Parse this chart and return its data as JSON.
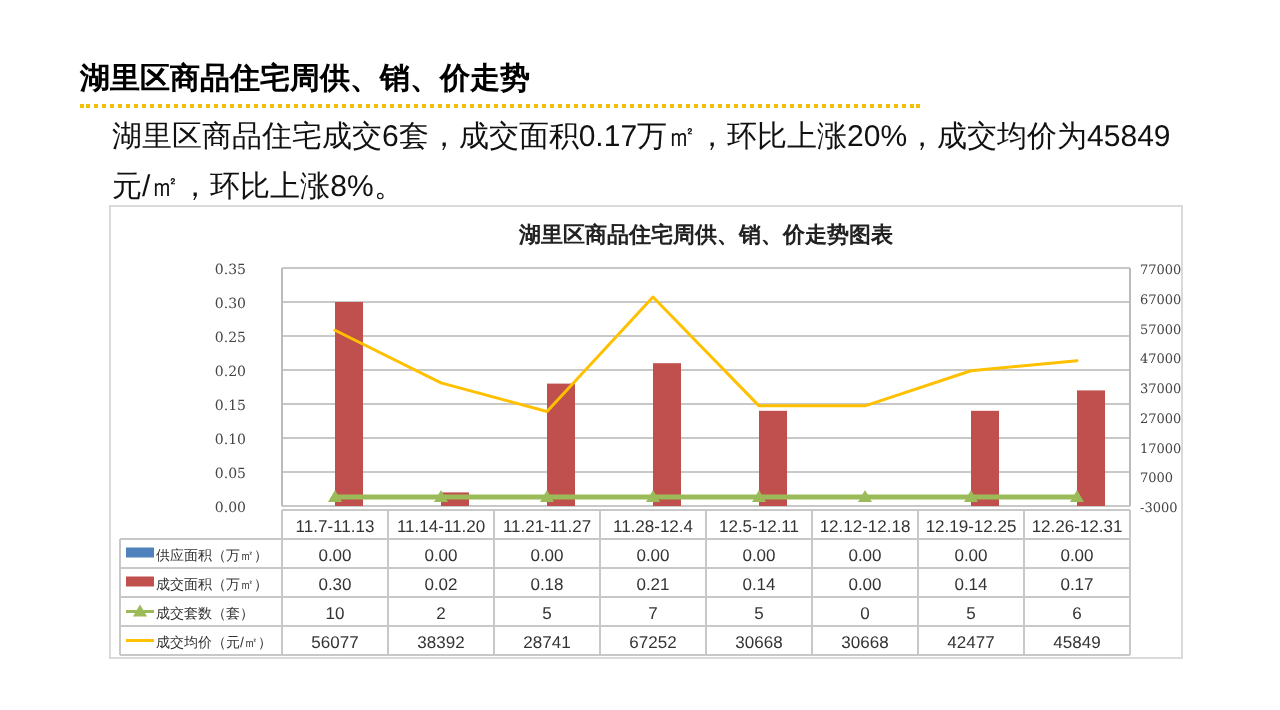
{
  "chart_data": {
    "type": "bar",
    "title": "湖里区商品住宅周供、销、价走势图表",
    "annotations": [
      "湖里区商品住宅周供、销、价走势",
      "湖里区商品住宅成交6套，成交面积0.17万㎡，环比上涨20%，成交均价为45849元/㎡，环比上涨8%。"
    ],
    "categories": [
      "11.7-11.13",
      "11.14-11.20",
      "11.21-11.27",
      "11.28-12.4",
      "12.5-12.11",
      "12.12-12.18",
      "12.19-12.25",
      "12.26-12.31"
    ],
    "series": [
      {
        "name": "供应面积（万㎡）",
        "color": "#4f81bd",
        "values": [
          0,
          0,
          0,
          0,
          0,
          0,
          0,
          0
        ],
        "value_labels": [
          "0.00",
          "0.00",
          "0.00",
          "0.00",
          "0.00",
          "0.00",
          "0.00",
          "0.00"
        ]
      },
      {
        "name": "成交面积（万㎡）",
        "color": "#c0504d",
        "values": [
          0.3,
          0.02,
          0.18,
          0.21,
          0.14,
          0,
          0.14,
          0.17
        ],
        "value_labels": [
          "0.30",
          "0.02",
          "0.18",
          "0.21",
          "0.14",
          "0.00",
          "0.14",
          "0.17"
        ]
      },
      {
        "name": "成交套数（套）",
        "type": "line",
        "axis": "y2",
        "color": "#9bbb59",
        "marker": "triangle",
        "values": [
          10,
          2,
          5,
          7,
          5,
          0,
          5,
          6
        ],
        "value_labels": [
          "10",
          "2",
          "5",
          "7",
          "5",
          "0",
          "5",
          "6"
        ]
      },
      {
        "name": "成交均价（元/㎡）",
        "type": "line",
        "axis": "y2",
        "color": "#ffc000",
        "marker": "none",
        "values": [
          56077,
          38392,
          28741,
          67252,
          30668,
          30668,
          42477,
          45849
        ],
        "value_labels": [
          "56077",
          "38392",
          "28741",
          "67252",
          "30668",
          "30668",
          "42477",
          "45849"
        ]
      }
    ],
    "ylim": [
      0,
      0.35
    ],
    "yticks": [
      {
        "value": 0,
        "label": "0.00"
      },
      {
        "value": 0.05,
        "label": "0.05"
      },
      {
        "value": 0.1,
        "label": "0.10"
      },
      {
        "value": 0.15,
        "label": "0.15"
      },
      {
        "value": 0.2,
        "label": "0.20"
      },
      {
        "value": 0.25,
        "label": "0.25"
      },
      {
        "value": 0.3,
        "label": "0.30"
      },
      {
        "value": 0.35,
        "label": "0.35"
      }
    ],
    "y2lim": [
      -3000,
      77000
    ],
    "y2ticks": [
      -3000,
      7000,
      17000,
      27000,
      37000,
      47000,
      57000,
      67000,
      77000
    ],
    "grid": "y",
    "legend": "bottom",
    "line_style": "solid"
  }
}
